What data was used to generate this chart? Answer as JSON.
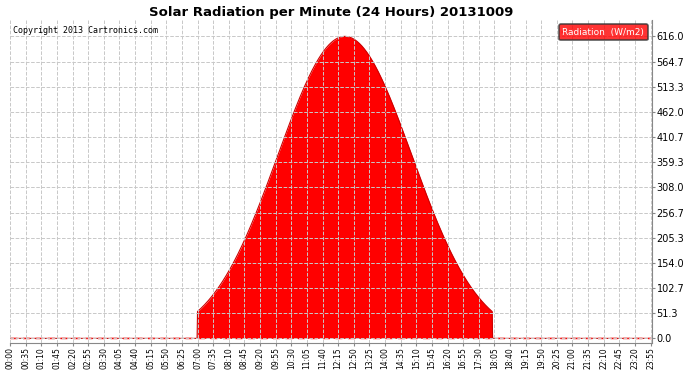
{
  "title": "Solar Radiation per Minute (24 Hours) 20131009",
  "copyright": "Copyright 2013 Cartronics.com",
  "legend_label": "Radiation  (W/m2)",
  "fill_color": "#ff0000",
  "line_color": "#cc0000",
  "background_color": "#ffffff",
  "grid_color": "#c8c8c8",
  "yticks": [
    0.0,
    51.3,
    102.7,
    154.0,
    205.3,
    256.7,
    308.0,
    359.3,
    410.7,
    462.0,
    513.3,
    564.7,
    616.0
  ],
  "ylim_min": -10,
  "ylim_max": 650,
  "peak_value": 616.0,
  "sunrise_minute": 420,
  "sunset_minute": 1080,
  "peak_minute": 750,
  "total_minutes": 1440,
  "xtick_interval": 35
}
